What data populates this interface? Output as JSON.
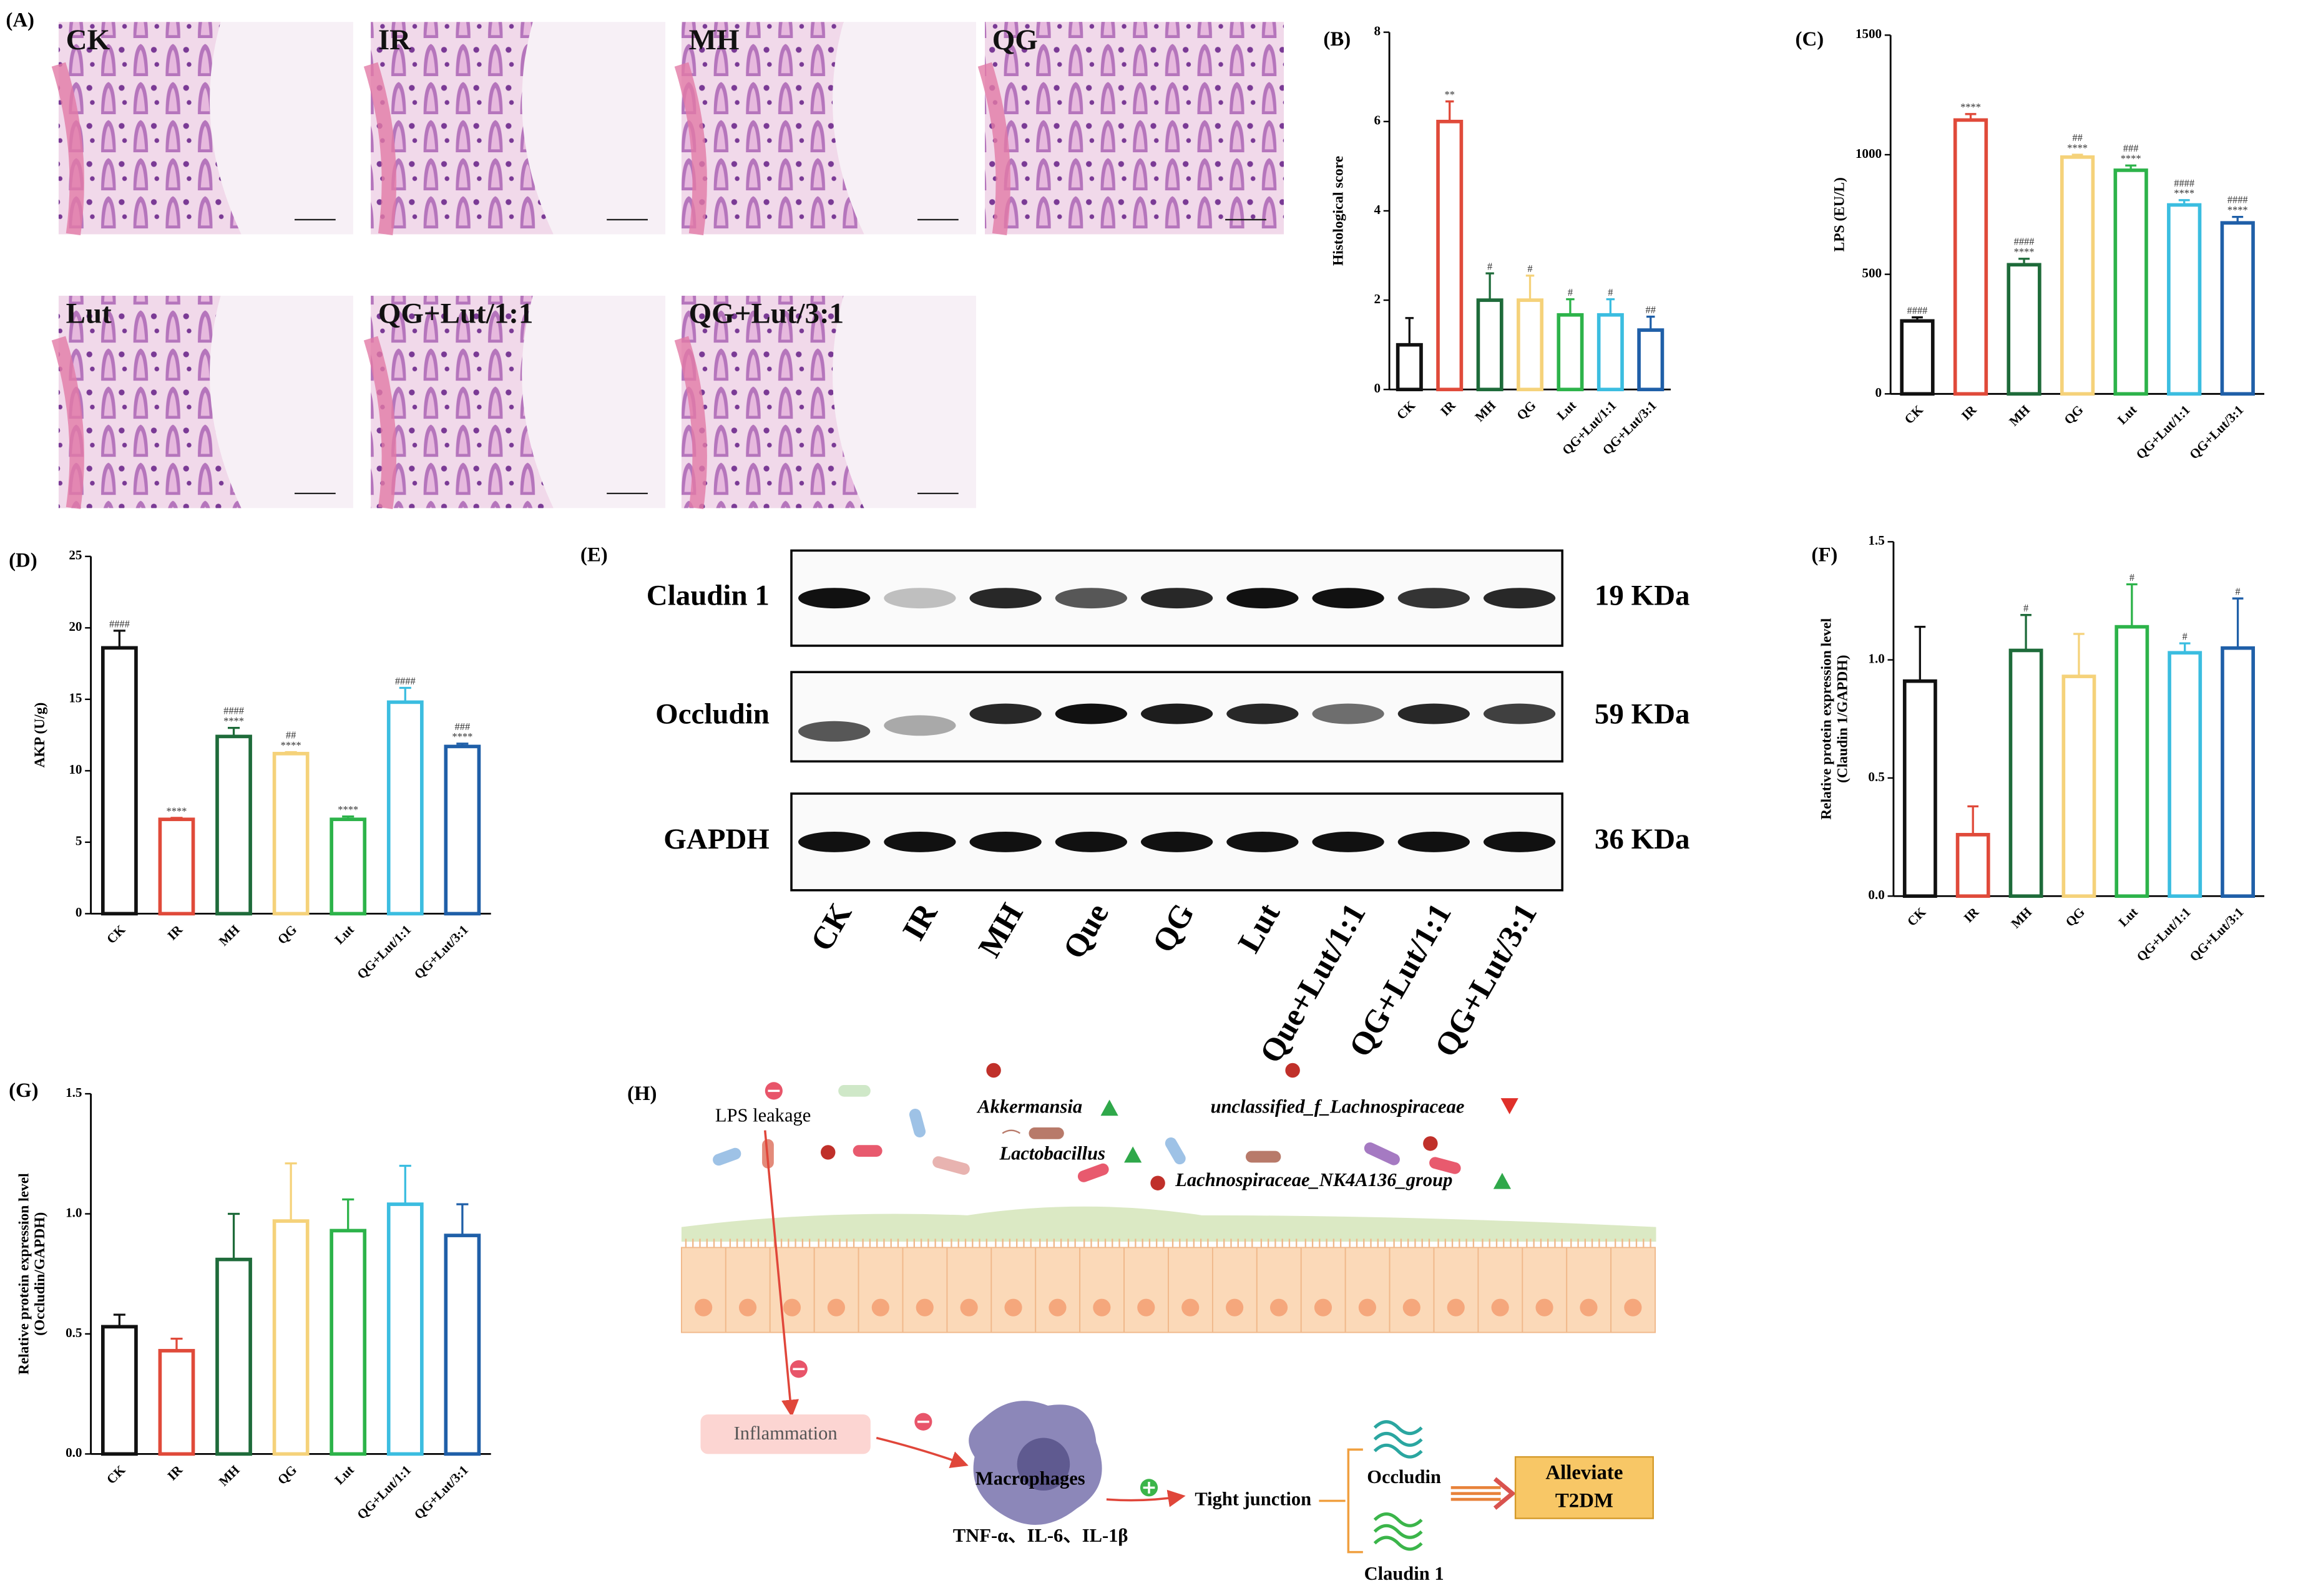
{
  "panel_a": {
    "label": "(A)",
    "images": [
      "CK",
      "IR",
      "MH",
      "QG",
      "Lut",
      "QG+Lut/1:1",
      "QG+Lut/3:1"
    ]
  },
  "chart_data": [
    {
      "type": "bar",
      "panel": "(B)",
      "ylabel": "Histological score",
      "categories": [
        "CK",
        "IR",
        "MH",
        "QG",
        "Lut",
        "QG+Lut/1:1",
        "QG+Lut/3:1"
      ],
      "values": [
        1,
        6,
        2,
        2,
        1.67,
        1.67,
        1.33
      ],
      "errors": [
        0.6,
        0.45,
        0.6,
        0.55,
        0.35,
        0.35,
        0.3
      ],
      "annotations": [
        null,
        [
          "**"
        ],
        [
          "#"
        ],
        [
          "#"
        ],
        [
          "#"
        ],
        [
          "#"
        ],
        [
          "##"
        ]
      ],
      "colors": [
        "#111111",
        "#e04a3a",
        "#1e6b3a",
        "#f5d27a",
        "#2db34a",
        "#3bbde0",
        "#1f5fa8"
      ],
      "ylim": [
        0,
        8
      ],
      "yticks": [
        0,
        2,
        4,
        6,
        8
      ]
    },
    {
      "type": "bar",
      "panel": "(C)",
      "ylabel": "LPS (EU/L)",
      "categories": [
        "CK",
        "IR",
        "MH",
        "QG",
        "Lut",
        "QG+Lut/1:1",
        "QG+Lut/3:1"
      ],
      "values": [
        305,
        1145,
        540,
        990,
        935,
        790,
        715
      ],
      "errors": [
        15,
        25,
        25,
        10,
        20,
        20,
        25
      ],
      "annotations": [
        [
          "####"
        ],
        [
          "****"
        ],
        [
          "####",
          "****"
        ],
        [
          "##",
          "****"
        ],
        [
          "###",
          "****"
        ],
        [
          "####",
          "****"
        ],
        [
          "####",
          "****"
        ]
      ],
      "colors": [
        "#111111",
        "#e04a3a",
        "#1e6b3a",
        "#f5d27a",
        "#2db34a",
        "#3bbde0",
        "#1f5fa8"
      ],
      "ylim": [
        0,
        1500
      ],
      "yticks": [
        0,
        500,
        1000,
        1500
      ]
    },
    {
      "type": "bar",
      "panel": "(D)",
      "ylabel": "AKP (U/g)",
      "categories": [
        "CK",
        "IR",
        "MH",
        "QG",
        "Lut",
        "QG+Lut/1:1",
        "QG+Lut/3:1"
      ],
      "values": [
        18.6,
        6.6,
        12.4,
        11.2,
        6.6,
        14.8,
        11.7
      ],
      "errors": [
        1.2,
        0.1,
        0.6,
        0.1,
        0.2,
        1.0,
        0.2
      ],
      "annotations": [
        [
          "####"
        ],
        [
          "****"
        ],
        [
          "####",
          "****"
        ],
        [
          "##",
          "****"
        ],
        [
          "****"
        ],
        [
          "####"
        ],
        [
          "###",
          "****"
        ]
      ],
      "colors": [
        "#111111",
        "#e04a3a",
        "#1e6b3a",
        "#f5d27a",
        "#2db34a",
        "#3bbde0",
        "#1f5fa8"
      ],
      "ylim": [
        0,
        25
      ],
      "yticks": [
        0,
        5,
        10,
        15,
        20,
        25
      ]
    },
    {
      "type": "bar",
      "panel": "(F)",
      "ylabel": [
        "Relative protein expression level",
        "(Claudin 1/GAPDH)"
      ],
      "categories": [
        "CK",
        "IR",
        "MH",
        "QG",
        "Lut",
        "QG+Lut/1:1",
        "QG+Lut/3:1"
      ],
      "values": [
        0.91,
        0.26,
        1.04,
        0.93,
        1.14,
        1.03,
        1.05
      ],
      "errors": [
        0.23,
        0.12,
        0.15,
        0.18,
        0.18,
        0.04,
        0.21
      ],
      "annotations": [
        null,
        null,
        [
          "#"
        ],
        null,
        [
          "#"
        ],
        [
          "#"
        ],
        [
          "#"
        ]
      ],
      "colors": [
        "#111111",
        "#e04a3a",
        "#1e6b3a",
        "#f5d27a",
        "#2db34a",
        "#3bbde0",
        "#1f5fa8"
      ],
      "ylim": [
        0,
        1.5
      ],
      "yticks": [
        {
          "value": 0,
          "label": "0.0"
        },
        {
          "value": 0.5,
          "label": "0.5"
        },
        {
          "value": 1,
          "label": "1.0"
        },
        {
          "value": 1.5,
          "label": "1.5"
        }
      ]
    },
    {
      "type": "bar",
      "panel": "(G)",
      "ylabel": [
        "Relative protein expression level",
        "(Occludin/GAPDH)"
      ],
      "categories": [
        "CK",
        "IR",
        "MH",
        "QG",
        "Lut",
        "QG+Lut/1:1",
        "QG+Lut/3:1"
      ],
      "values": [
        0.53,
        0.43,
        0.81,
        0.97,
        0.93,
        1.04,
        0.91
      ],
      "errors": [
        0.05,
        0.05,
        0.19,
        0.24,
        0.13,
        0.16,
        0.13
      ],
      "annotations": [
        null,
        null,
        null,
        null,
        null,
        null,
        null
      ],
      "colors": [
        "#111111",
        "#e04a3a",
        "#1e6b3a",
        "#f5d27a",
        "#2db34a",
        "#3bbde0",
        "#1f5fa8"
      ],
      "ylim": [
        0,
        1.5
      ],
      "yticks": [
        {
          "value": 0,
          "label": "0.0"
        },
        {
          "value": 0.5,
          "label": "0.5"
        },
        {
          "value": 1,
          "label": "1.0"
        },
        {
          "value": 1.5,
          "label": "1.5"
        }
      ]
    }
  ],
  "panel_e": {
    "label": "(E)",
    "rows": [
      {
        "name": "Claudin 1",
        "size": "19 KDa"
      },
      {
        "name": "Occludin",
        "size": "59 KDa"
      },
      {
        "name": "GAPDH",
        "size": "36 KDa"
      }
    ],
    "lanes": [
      "CK",
      "IR",
      "MH",
      "Que",
      "QG",
      "Lut",
      "Que+Lut/1:1",
      "QG+Lut/1:1",
      "QG+Lut/3:1"
    ]
  },
  "panel_h": {
    "label": "(H)",
    "lps": "LPS leakage",
    "bacteria": [
      {
        "name": "Akkermansia",
        "trend": "up"
      },
      {
        "name": "Lactobacillus",
        "trend": "up"
      },
      {
        "name": "unclassified_f_Lachnospiraceae",
        "trend": "down"
      },
      {
        "name": "Lachnospiraceae_NK4A136_group",
        "trend": "up"
      }
    ],
    "inflammation": "Inflammation",
    "macrophages": "Macrophages",
    "cytokines": "TNF-α、IL-6、IL-1β",
    "tight_junction": "Tight junction",
    "occludin": "Occludin",
    "claudin": "Claudin 1",
    "outcome": [
      "Alleviate",
      "T2DM"
    ]
  }
}
